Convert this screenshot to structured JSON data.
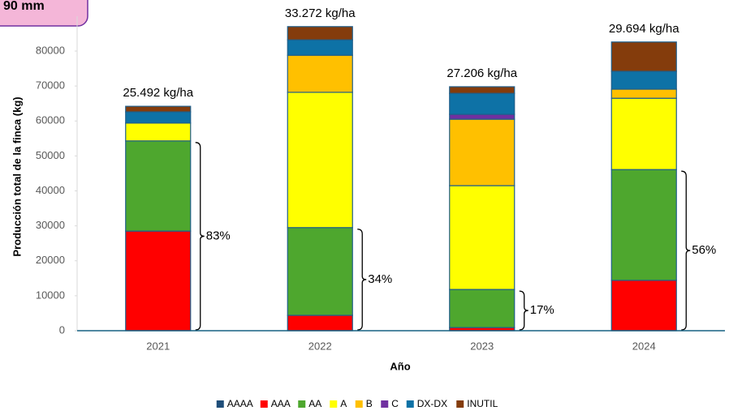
{
  "badge": "90 mm",
  "chart_data": {
    "type": "stacked_bar",
    "x_label": "Año",
    "y_label": "Producción total de la finca (kg)",
    "categories": [
      "2021",
      "2022",
      "2023",
      "2024"
    ],
    "ylim": [
      0,
      90000
    ],
    "yticks": [
      0,
      10000,
      20000,
      30000,
      40000,
      50000,
      60000,
      70000,
      80000
    ],
    "series": [
      {
        "name": "AAAA",
        "color": "#1f4e79",
        "values": [
          0,
          0,
          0,
          0
        ]
      },
      {
        "name": "AAA",
        "color": "#ff0000",
        "values": [
          28500,
          4400,
          900,
          14400
        ]
      },
      {
        "name": "AA",
        "color": "#4ea72e",
        "values": [
          25800,
          25100,
          10900,
          31700
        ]
      },
      {
        "name": "A",
        "color": "#ffff00",
        "values": [
          5100,
          38700,
          29700,
          20400
        ]
      },
      {
        "name": "B",
        "color": "#ffc000",
        "values": [
          0,
          10600,
          19000,
          2600
        ]
      },
      {
        "name": "C",
        "color": "#7030a0",
        "values": [
          0,
          0,
          1400,
          0
        ]
      },
      {
        "name": "DX-DX",
        "color": "#0e72a6",
        "values": [
          3200,
          4400,
          6000,
          5100
        ]
      },
      {
        "name": "INUTIL",
        "color": "#843c0c",
        "values": [
          1600,
          3800,
          1900,
          8400
        ]
      }
    ],
    "bar_labels": [
      "25.492 kg/ha",
      "33.272 kg/ha",
      "27.206 kg/ha",
      "29.694 kg/ha"
    ],
    "bracket_labels": [
      "83%",
      "34%",
      "17%",
      "56%"
    ]
  }
}
